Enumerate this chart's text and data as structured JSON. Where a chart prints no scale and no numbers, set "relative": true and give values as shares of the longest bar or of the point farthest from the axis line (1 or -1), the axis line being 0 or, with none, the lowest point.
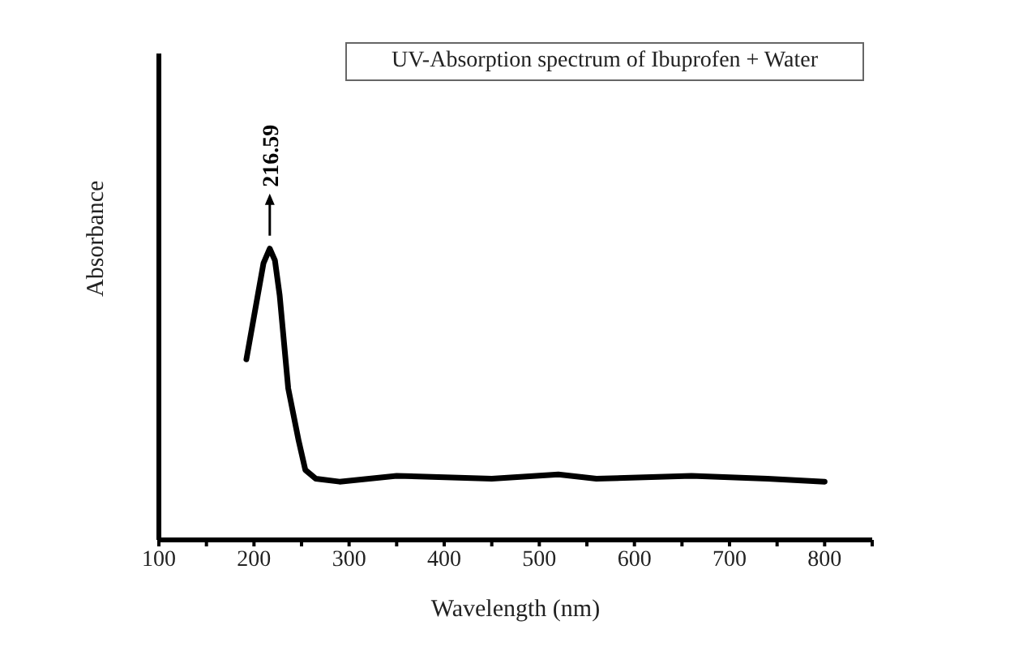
{
  "chart_data": {
    "type": "line",
    "title": "UV-Absorption spectrum of Ibuprofen + Water",
    "xlabel": "Wavelength (nm)",
    "ylabel": "Absorbance",
    "relative": true,
    "x": [
      192,
      204,
      210,
      216.59,
      222,
      227,
      236,
      247,
      254,
      265,
      290,
      350,
      450,
      520,
      560,
      660,
      740,
      800
    ],
    "series": [
      {
        "color": "#000000",
        "values": [
          0.62,
          0.84,
          0.95,
          1,
          0.96,
          0.84,
          0.52,
          0.34,
          0.24,
          0.21,
          0.2,
          0.22,
          0.21,
          0.225,
          0.21,
          0.22,
          0.21,
          0.2
        ]
      }
    ],
    "xlim": [
      100,
      850
    ],
    "xticks": [
      100,
      {
        "value": 150,
        "label": null
      },
      200,
      {
        "value": 250,
        "label": null
      },
      300,
      {
        "value": 350,
        "label": null
      },
      400,
      {
        "value": 450,
        "label": null
      },
      500,
      {
        "value": 550,
        "label": null
      },
      600,
      {
        "value": 650,
        "label": null
      },
      700,
      {
        "value": 750,
        "label": null
      },
      800,
      {
        "value": 850,
        "label": null
      }
    ],
    "annotations": [
      {
        "text": "216.59",
        "x": 216.59,
        "y": 1
      }
    ],
    "grid": false,
    "legend": false,
    "marker": "none",
    "line_style": "solid"
  }
}
